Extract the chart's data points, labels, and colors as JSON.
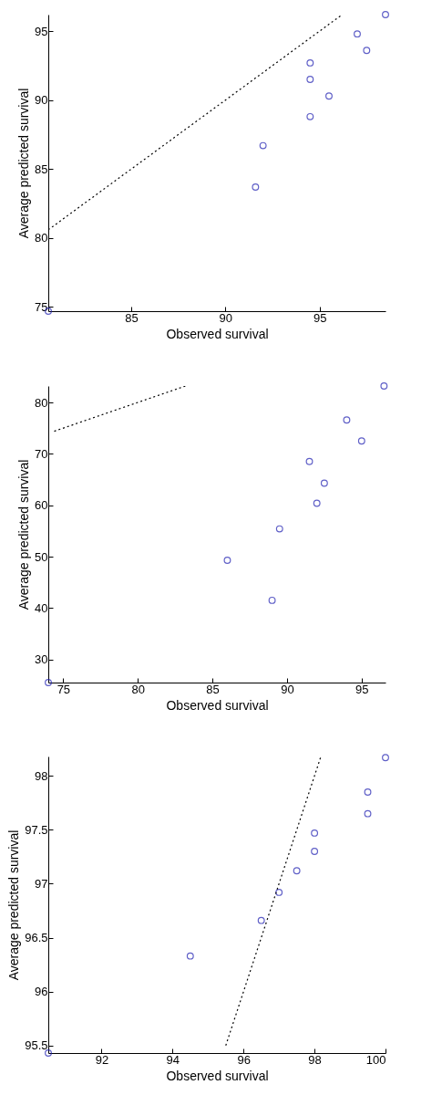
{
  "chart_data": [
    {
      "type": "scatter",
      "xlabel": "Observed survival",
      "ylabel": "Average predicted survival",
      "xlim": [
        80.6,
        98.5
      ],
      "ylim": [
        74.7,
        96.2
      ],
      "xticks": [
        85,
        90,
        95
      ],
      "yticks": [
        75,
        80,
        85,
        90,
        95
      ],
      "marker": "circle",
      "series": [
        {
          "type": "scatter",
          "color": "#1c1cb0",
          "x": [
            80.6,
            91.6,
            92.0,
            94.5,
            94.5,
            94.5,
            95.5,
            97.0,
            97.5,
            98.5
          ],
          "values": [
            74.7,
            83.7,
            86.7,
            92.7,
            91.5,
            88.8,
            90.3,
            94.8,
            93.6,
            96.2
          ]
        },
        {
          "type": "line",
          "marker": "none",
          "line_style": "dotted",
          "color": "#000000",
          "x": [
            80.6,
            96.2
          ],
          "values": [
            80.6,
            96.2
          ]
        }
      ]
    },
    {
      "type": "scatter",
      "xlabel": "Observed survival",
      "ylabel": "Average predicted survival",
      "xlim": [
        74,
        96.6
      ],
      "ylim": [
        25.5,
        83.2
      ],
      "xticks": [
        75,
        80,
        85,
        90,
        95
      ],
      "yticks": [
        30,
        40,
        50,
        60,
        70,
        80
      ],
      "marker": "circle",
      "series": [
        {
          "type": "scatter",
          "color": "#1c1cb0",
          "x": [
            74.0,
            86.0,
            89.0,
            89.5,
            91.5,
            92.0,
            92.5,
            94.0,
            95.0,
            96.5
          ],
          "values": [
            25.5,
            49.3,
            41.5,
            55.4,
            68.5,
            60.4,
            64.3,
            76.6,
            72.5,
            83.2
          ]
        },
        {
          "type": "line",
          "marker": "none",
          "line_style": "dotted",
          "color": "#000000",
          "x": [
            74.4,
            83.2
          ],
          "values": [
            74.4,
            83.2
          ]
        }
      ]
    },
    {
      "type": "scatter",
      "xlabel": "Observed survival",
      "ylabel": "Average predicted survival",
      "xlim": [
        90.5,
        100
      ],
      "ylim": [
        95.43,
        98.18
      ],
      "xticks": [
        92,
        94,
        96,
        98,
        100
      ],
      "yticks": [
        95.5,
        96,
        96.5,
        97,
        97.5,
        98
      ],
      "marker": "circle",
      "series": [
        {
          "type": "scatter",
          "color": "#1c1cb0",
          "x": [
            90.5,
            94.5,
            96.5,
            97.0,
            97.5,
            98.0,
            98.0,
            99.5,
            99.5,
            100.0
          ],
          "values": [
            95.43,
            96.33,
            96.66,
            96.92,
            97.12,
            97.3,
            97.47,
            97.85,
            97.65,
            98.17
          ]
        },
        {
          "type": "line",
          "marker": "none",
          "line_style": "dotted",
          "color": "#000000",
          "x": [
            95.5,
            98.18
          ],
          "values": [
            95.5,
            98.18
          ]
        }
      ]
    }
  ]
}
